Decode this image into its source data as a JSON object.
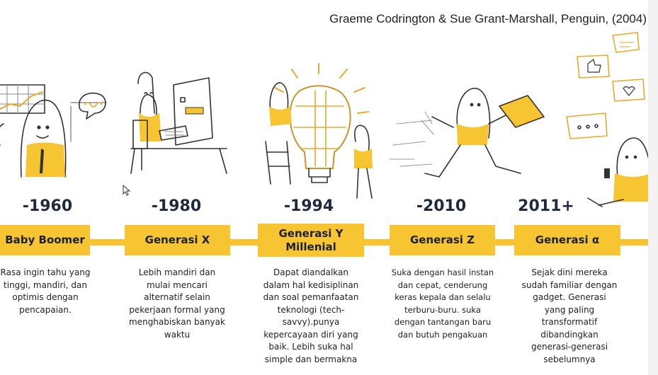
{
  "credit": "Graeme Codrington & Sue Grant-Marshall, Penguin, (2004)",
  "colors": {
    "accent": "#f6c531",
    "text": "#1f2a3d",
    "line": "#3a3a3a"
  },
  "generations": [
    {
      "year": "-1960",
      "name": "Baby Boomer",
      "description": "Rasa ingin tahu yang tinggi, mandiri, dan optimis dengan pencapaian."
    },
    {
      "year": "-1980",
      "name": "Generasi X",
      "description": "Lebih mandiri dan mulai mencari alternatif selain pekerjaan formal yang menghabiskan banyak waktu"
    },
    {
      "year": "-1994",
      "name": "Generasi Y Millenial",
      "description": "Dapat diandalkan dalam hal kedisiplinan dan soal pemanfaatan teknologi (tech-savvy).punya kepercayaan diri yang baik. Lebih suka hal simple dan bermakna"
    },
    {
      "year": "-2010",
      "name": "Generasi Z",
      "description": "Suka dengan hasil instan dan cepat, cenderung keras kepala dan selalu terburu-buru. suka dengan tantangan baru dan butuh pengakuan"
    },
    {
      "year": "2011+",
      "name": "Generasi α",
      "description": "Sejak dini mereka sudah familiar dengan gadget. Generasi yang paling transformatif dibandingkan generasi-generasi sebelumnya"
    }
  ]
}
